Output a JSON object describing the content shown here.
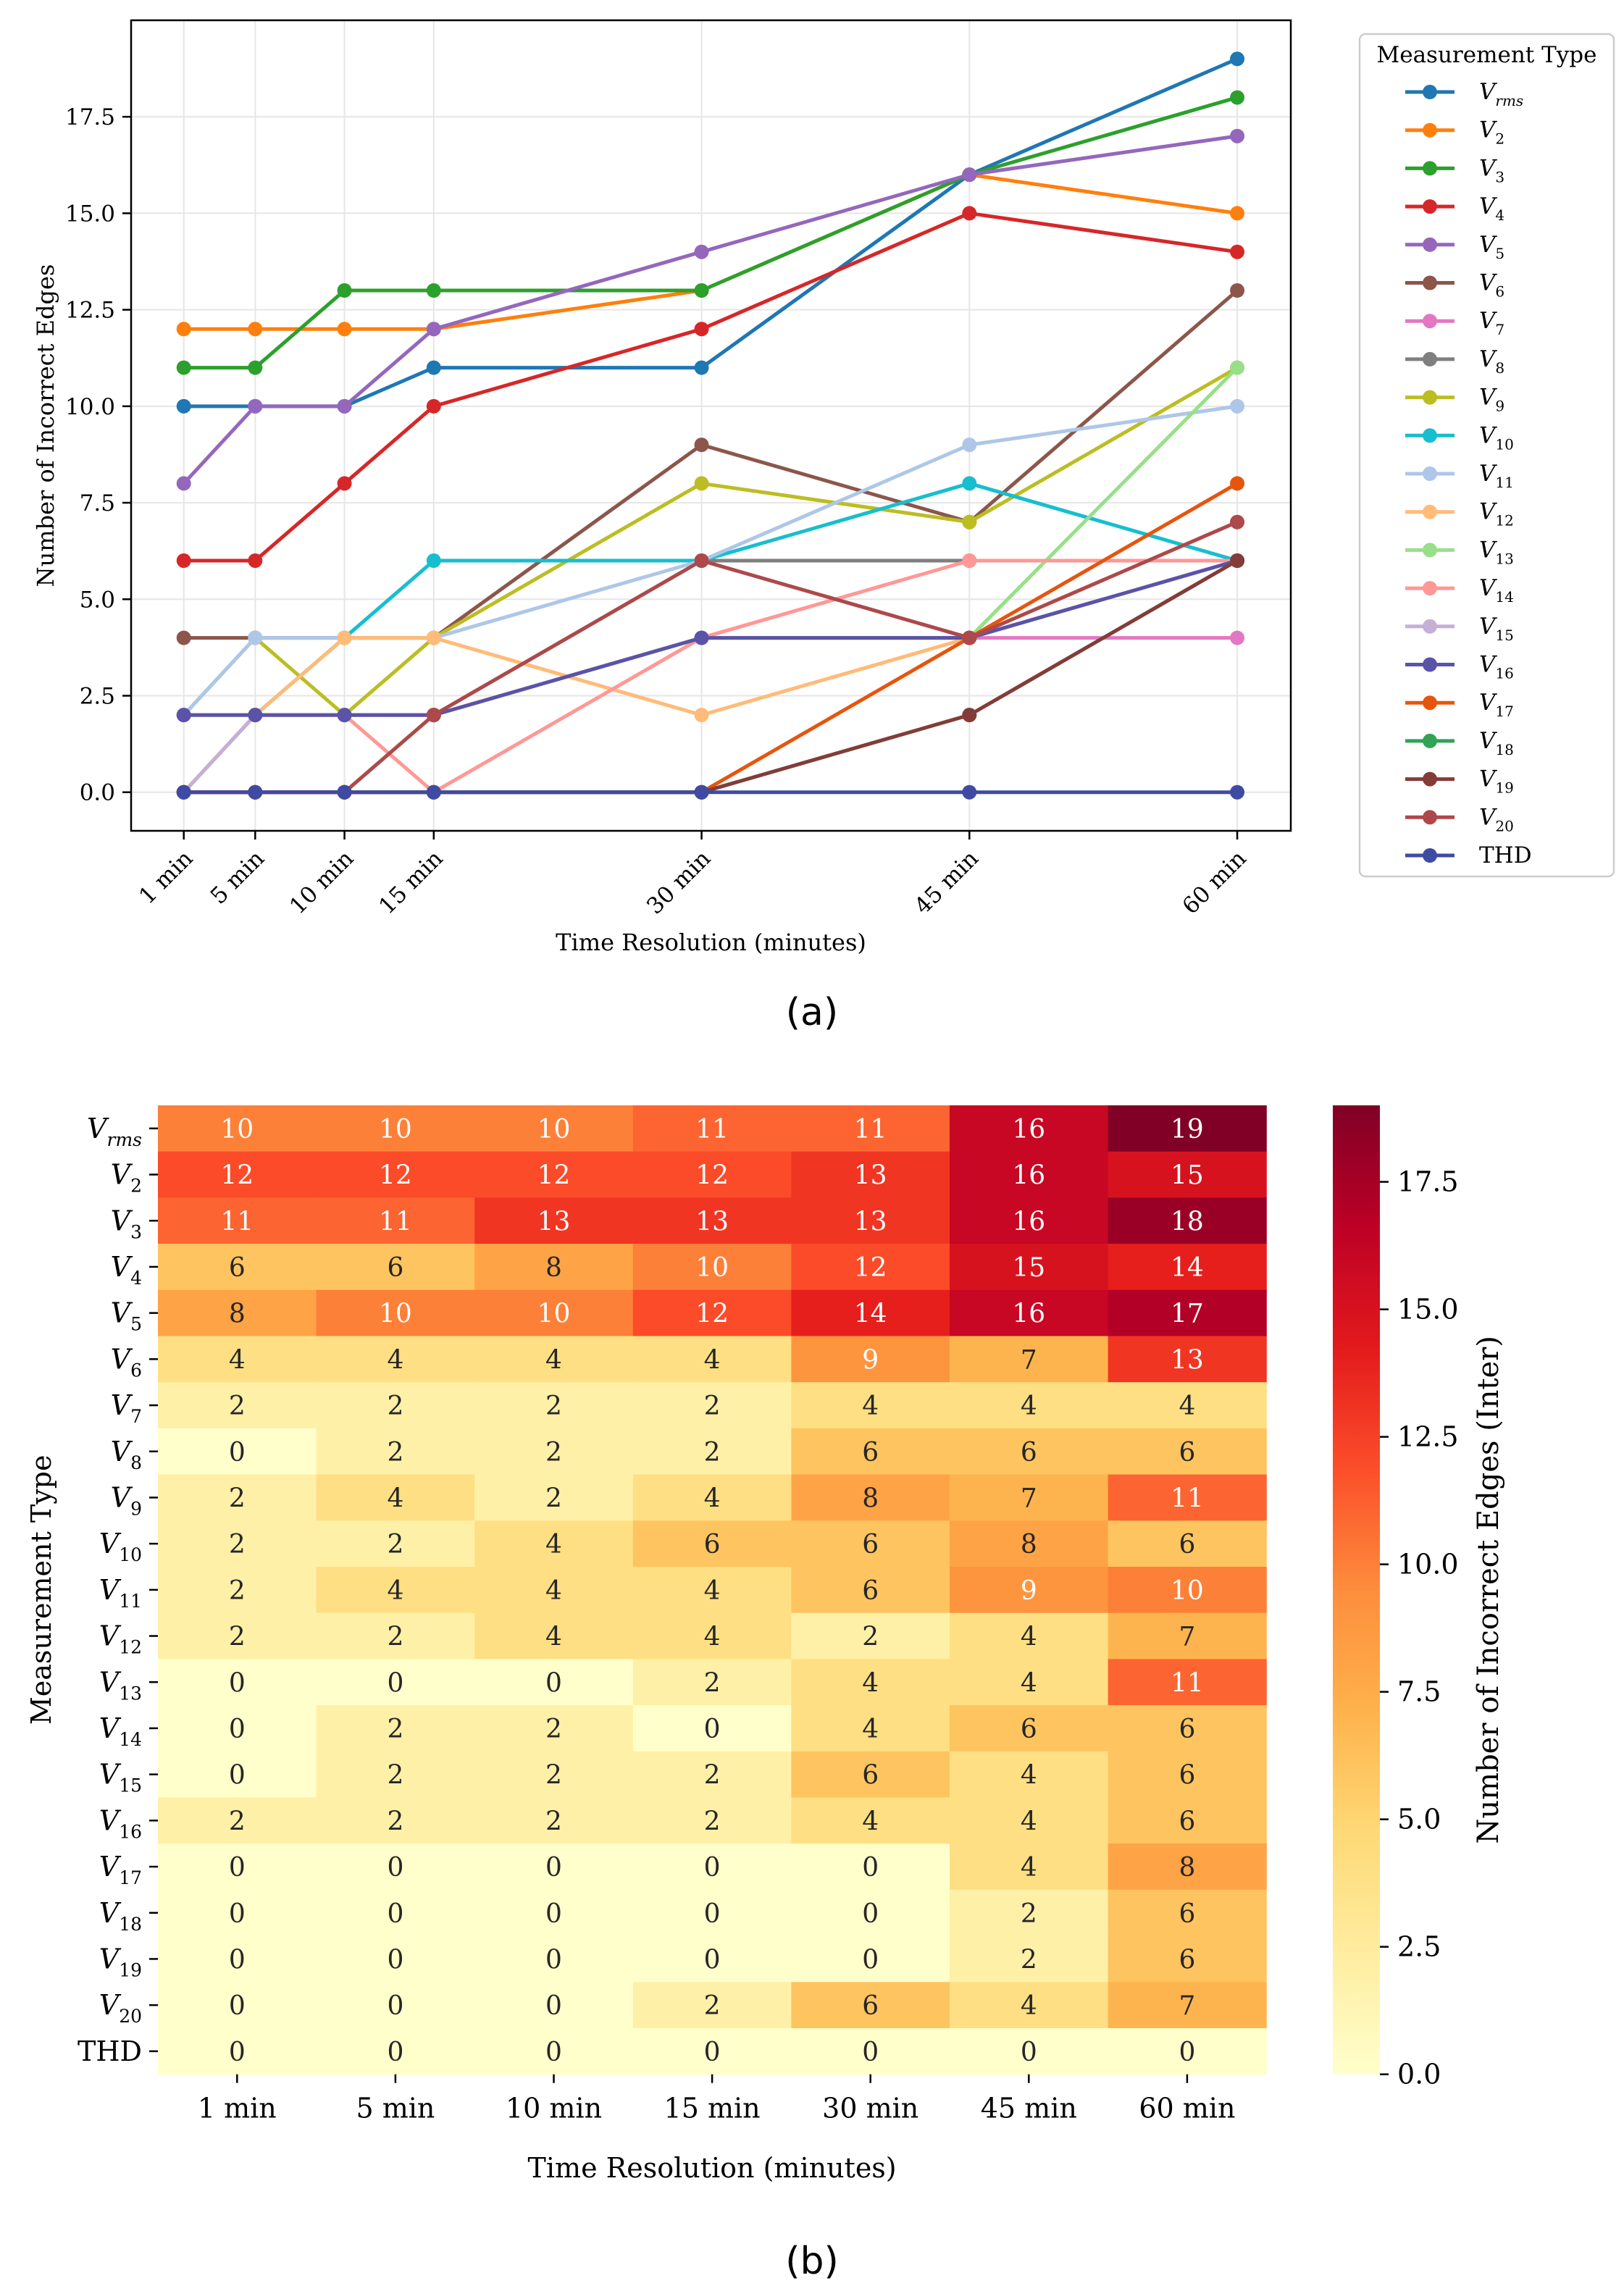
{
  "captions": {
    "a": "(a)",
    "b": "(b)"
  },
  "chart_data": [
    {
      "type": "line",
      "title": "",
      "xlabel": "Time Resolution (minutes)",
      "ylabel": "Number of Incorrect Edges",
      "x": [
        1,
        5,
        10,
        15,
        30,
        45,
        60
      ],
      "x_tick_labels": [
        "1 min",
        "5 min",
        "10 min",
        "15 min",
        "30 min",
        "45 min",
        "60 min"
      ],
      "ylim": [
        -1.0,
        20.0
      ],
      "y_ticks": [
        0.0,
        2.5,
        5.0,
        7.5,
        10.0,
        12.5,
        15.0,
        17.5
      ],
      "y_tick_labels": [
        "0.0",
        "2.5",
        "5.0",
        "7.5",
        "10.0",
        "12.5",
        "15.0",
        "17.5"
      ],
      "grid": true,
      "legend": {
        "title": "Measurement Type",
        "placement": "outside right"
      },
      "series": [
        {
          "name": "V",
          "sub": "rms",
          "color": "#1f77b4",
          "values": [
            10,
            10,
            10,
            11,
            11,
            16,
            19
          ]
        },
        {
          "name": "V",
          "sub": "2",
          "color": "#ff7f0e",
          "values": [
            12,
            12,
            12,
            12,
            13,
            16,
            15
          ]
        },
        {
          "name": "V",
          "sub": "3",
          "color": "#2ca02c",
          "values": [
            11,
            11,
            13,
            13,
            13,
            16,
            18
          ]
        },
        {
          "name": "V",
          "sub": "4",
          "color": "#d62728",
          "values": [
            6,
            6,
            8,
            10,
            12,
            15,
            14
          ]
        },
        {
          "name": "V",
          "sub": "5",
          "color": "#9467bd",
          "values": [
            8,
            10,
            10,
            12,
            14,
            16,
            17
          ]
        },
        {
          "name": "V",
          "sub": "6",
          "color": "#8c564b",
          "values": [
            4,
            4,
            4,
            4,
            9,
            7,
            13
          ]
        },
        {
          "name": "V",
          "sub": "7",
          "color": "#e377c2",
          "values": [
            2,
            2,
            2,
            2,
            4,
            4,
            4
          ]
        },
        {
          "name": "V",
          "sub": "8",
          "color": "#7f7f7f",
          "values": [
            0,
            2,
            2,
            2,
            6,
            6,
            6
          ]
        },
        {
          "name": "V",
          "sub": "9",
          "color": "#bcbd22",
          "values": [
            2,
            4,
            2,
            4,
            8,
            7,
            11
          ]
        },
        {
          "name": "V",
          "sub": "10",
          "color": "#17becf",
          "values": [
            2,
            2,
            4,
            6,
            6,
            8,
            6
          ]
        },
        {
          "name": "V",
          "sub": "11",
          "color": "#aec7e8",
          "values": [
            2,
            4,
            4,
            4,
            6,
            9,
            10
          ]
        },
        {
          "name": "V",
          "sub": "12",
          "color": "#ffbb78",
          "values": [
            2,
            2,
            4,
            4,
            2,
            4,
            7
          ]
        },
        {
          "name": "V",
          "sub": "13",
          "color": "#98df8a",
          "values": [
            0,
            0,
            0,
            2,
            4,
            4,
            11
          ]
        },
        {
          "name": "V",
          "sub": "14",
          "color": "#ff9896",
          "values": [
            0,
            2,
            2,
            0,
            4,
            6,
            6
          ]
        },
        {
          "name": "V",
          "sub": "15",
          "color": "#c5b0d5",
          "values": [
            0,
            2,
            2,
            2,
            6,
            4,
            6
          ]
        },
        {
          "name": "V",
          "sub": "16",
          "color": "#5b53a8",
          "values": [
            2,
            2,
            2,
            2,
            4,
            4,
            6
          ]
        },
        {
          "name": "V",
          "sub": "17",
          "color": "#e6550d",
          "values": [
            0,
            0,
            0,
            0,
            0,
            4,
            8
          ]
        },
        {
          "name": "V",
          "sub": "18",
          "color": "#31a354",
          "values": [
            0,
            0,
            0,
            0,
            0,
            2,
            6
          ]
        },
        {
          "name": "V",
          "sub": "19",
          "color": "#843c39",
          "values": [
            0,
            0,
            0,
            0,
            0,
            2,
            6
          ]
        },
        {
          "name": "V",
          "sub": "20",
          "color": "#ad494a",
          "values": [
            0,
            0,
            0,
            2,
            6,
            4,
            7
          ]
        },
        {
          "name": "THD",
          "sub": "",
          "color": "#3f4ba3",
          "values": [
            0,
            0,
            0,
            0,
            0,
            0,
            0
          ]
        }
      ]
    },
    {
      "type": "heatmap",
      "xlabel": "Time Resolution (minutes)",
      "ylabel": "Measurement Type",
      "x_labels": [
        "1 min",
        "5 min",
        "10 min",
        "15 min",
        "30 min",
        "45 min",
        "60 min"
      ],
      "colormap": "YlOrRd",
      "colorbar": {
        "label": "Number of Incorrect Edges (Inter)",
        "range": [
          0,
          19
        ],
        "ticks": [
          0.0,
          2.5,
          5.0,
          7.5,
          10.0,
          12.5,
          15.0,
          17.5
        ],
        "tick_labels": [
          "0.0",
          "2.5",
          "5.0",
          "7.5",
          "10.0",
          "12.5",
          "15.0",
          "17.5"
        ]
      },
      "rows": [
        {
          "name": "V",
          "sub": "rms",
          "values": [
            10,
            10,
            10,
            11,
            11,
            16,
            19
          ]
        },
        {
          "name": "V",
          "sub": "2",
          "values": [
            12,
            12,
            12,
            12,
            13,
            16,
            15
          ]
        },
        {
          "name": "V",
          "sub": "3",
          "values": [
            11,
            11,
            13,
            13,
            13,
            16,
            18
          ]
        },
        {
          "name": "V",
          "sub": "4",
          "values": [
            6,
            6,
            8,
            10,
            12,
            15,
            14
          ]
        },
        {
          "name": "V",
          "sub": "5",
          "values": [
            8,
            10,
            10,
            12,
            14,
            16,
            17
          ]
        },
        {
          "name": "V",
          "sub": "6",
          "values": [
            4,
            4,
            4,
            4,
            9,
            7,
            13
          ]
        },
        {
          "name": "V",
          "sub": "7",
          "values": [
            2,
            2,
            2,
            2,
            4,
            4,
            4
          ]
        },
        {
          "name": "V",
          "sub": "8",
          "values": [
            0,
            2,
            2,
            2,
            6,
            6,
            6
          ]
        },
        {
          "name": "V",
          "sub": "9",
          "values": [
            2,
            4,
            2,
            4,
            8,
            7,
            11
          ]
        },
        {
          "name": "V",
          "sub": "10",
          "values": [
            2,
            2,
            4,
            6,
            6,
            8,
            6
          ]
        },
        {
          "name": "V",
          "sub": "11",
          "values": [
            2,
            4,
            4,
            4,
            6,
            9,
            10
          ]
        },
        {
          "name": "V",
          "sub": "12",
          "values": [
            2,
            2,
            4,
            4,
            2,
            4,
            7
          ]
        },
        {
          "name": "V",
          "sub": "13",
          "values": [
            0,
            0,
            0,
            2,
            4,
            4,
            11
          ]
        },
        {
          "name": "V",
          "sub": "14",
          "values": [
            0,
            2,
            2,
            0,
            4,
            6,
            6
          ]
        },
        {
          "name": "V",
          "sub": "15",
          "values": [
            0,
            2,
            2,
            2,
            6,
            4,
            6
          ]
        },
        {
          "name": "V",
          "sub": "16",
          "values": [
            2,
            2,
            2,
            2,
            4,
            4,
            6
          ]
        },
        {
          "name": "V",
          "sub": "17",
          "values": [
            0,
            0,
            0,
            0,
            0,
            4,
            8
          ]
        },
        {
          "name": "V",
          "sub": "18",
          "values": [
            0,
            0,
            0,
            0,
            0,
            2,
            6
          ]
        },
        {
          "name": "V",
          "sub": "19",
          "values": [
            0,
            0,
            0,
            0,
            0,
            2,
            6
          ]
        },
        {
          "name": "V",
          "sub": "20",
          "values": [
            0,
            0,
            0,
            2,
            6,
            4,
            7
          ]
        },
        {
          "name": "THD",
          "sub": "",
          "values": [
            0,
            0,
            0,
            0,
            0,
            0,
            0
          ]
        }
      ]
    }
  ]
}
